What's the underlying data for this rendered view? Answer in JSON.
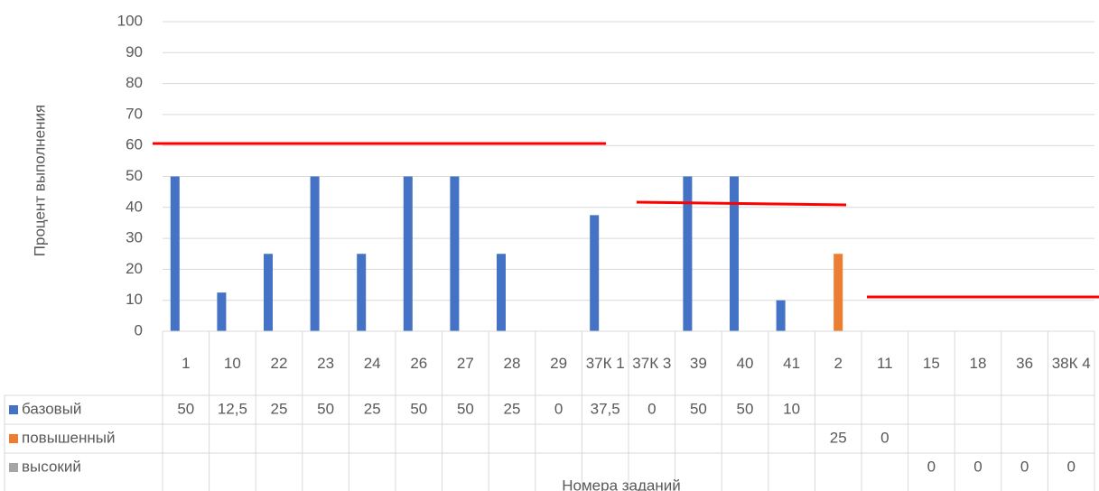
{
  "chart_data": {
    "type": "bar",
    "y_label": "Процент выполнения",
    "x_label": "Номера заданий",
    "categories": [
      "1",
      "10",
      "22",
      "23",
      "24",
      "26",
      "27",
      "28",
      "29",
      "37К 1",
      "37К 3",
      "39",
      "40",
      "41",
      "2",
      "11",
      "15",
      "18",
      "36",
      "38К 4"
    ],
    "series": [
      {
        "name": "базовый",
        "color": "#4472c4",
        "values": [
          50,
          12.5,
          25,
          50,
          25,
          50,
          50,
          25,
          0,
          37.5,
          0,
          50,
          50,
          10,
          null,
          null,
          null,
          null,
          null,
          null
        ],
        "value_labels": [
          "50",
          "12,5",
          "25",
          "50",
          "25",
          "50",
          "50",
          "25",
          "0",
          "37,5",
          "0",
          "50",
          "50",
          "10",
          null,
          null,
          null,
          null,
          null,
          null
        ]
      },
      {
        "name": "повышенный",
        "color": "#ed7d31",
        "values": [
          null,
          null,
          null,
          null,
          null,
          null,
          null,
          null,
          null,
          null,
          null,
          null,
          null,
          null,
          25,
          0,
          null,
          null,
          null,
          null
        ]
      },
      {
        "name": "высокий",
        "color": "#a5a5a5",
        "values": [
          null,
          null,
          null,
          null,
          null,
          null,
          null,
          null,
          null,
          null,
          null,
          null,
          null,
          null,
          null,
          null,
          0,
          0,
          0,
          0
        ]
      }
    ],
    "ylim": [
      0,
      100
    ],
    "yticks": [
      0,
      10,
      20,
      30,
      40,
      50,
      60,
      70,
      80,
      90,
      100
    ],
    "grid": true
  }
}
